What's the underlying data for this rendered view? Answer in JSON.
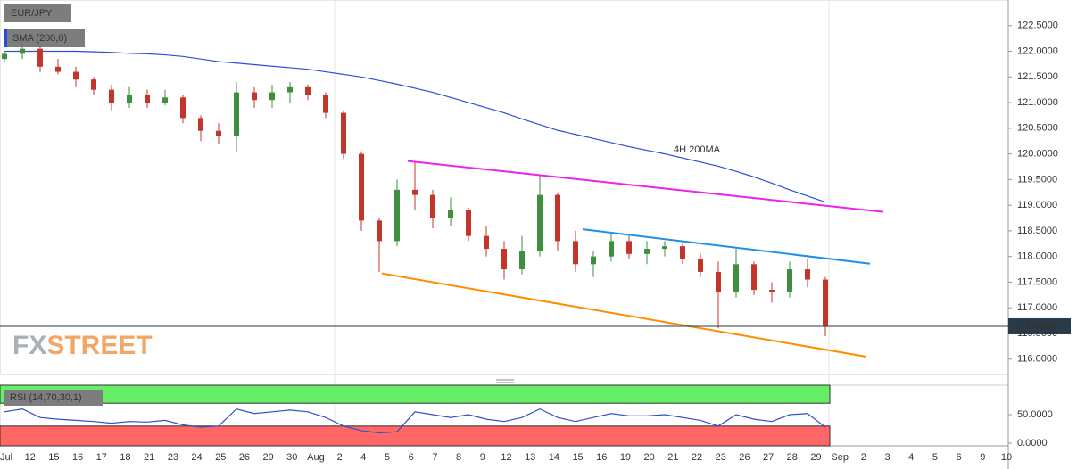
{
  "chart_data": [
    {
      "type": "candlestick",
      "title": "EUR/JPY",
      "watermark": [
        "FX",
        "STREET"
      ],
      "ylim": [
        115.7,
        123.0
      ],
      "xlim": [
        -0.25,
        56.25
      ],
      "yticks": [
        {
          "value": 116.0,
          "label": "116.0000"
        },
        {
          "value": 116.5,
          "label": "116.5000"
        },
        {
          "value": 117.0,
          "label": "117.0000"
        },
        {
          "value": 117.5,
          "label": "117.5000"
        },
        {
          "value": 118.0,
          "label": "118.0000"
        },
        {
          "value": 118.5,
          "label": "118.5000"
        },
        {
          "value": 119.0,
          "label": "119.0000"
        },
        {
          "value": 119.5,
          "label": "119.5000"
        },
        {
          "value": 120.0,
          "label": "120.0000"
        },
        {
          "value": 120.5,
          "label": "120.5000"
        },
        {
          "value": 121.0,
          "label": "121.0000"
        },
        {
          "value": 121.5,
          "label": "121.5000"
        },
        {
          "value": 122.0,
          "label": "122.0000"
        },
        {
          "value": 122.5,
          "label": "122.5000"
        }
      ],
      "up_color": "#3f8f3f",
      "down_color": "#c3352b",
      "open": [
        121.85,
        121.95,
        122.05,
        121.7,
        121.6,
        121.45,
        121.25,
        121.0,
        121.15,
        121.0,
        121.1,
        120.7,
        120.45,
        120.35,
        121.2,
        121.05,
        121.2,
        121.3,
        121.15,
        120.8,
        120.0,
        118.7,
        118.3,
        119.3,
        119.2,
        118.75,
        118.9,
        118.4,
        118.15,
        117.75,
        118.1,
        119.2,
        118.3,
        117.85,
        118.0,
        118.3,
        118.05,
        118.15,
        118.2,
        117.95,
        117.7,
        117.3,
        117.85,
        117.35,
        117.3,
        117.75,
        117.55
      ],
      "high": [
        122.0,
        122.15,
        122.1,
        121.85,
        121.7,
        121.5,
        121.35,
        121.3,
        121.25,
        121.25,
        121.15,
        120.75,
        120.6,
        121.4,
        121.3,
        121.35,
        121.4,
        121.35,
        121.2,
        120.85,
        120.05,
        118.75,
        119.5,
        119.85,
        119.3,
        119.15,
        118.95,
        118.6,
        118.3,
        118.4,
        119.6,
        119.25,
        118.5,
        118.1,
        118.45,
        118.4,
        118.3,
        118.3,
        118.25,
        118.05,
        117.9,
        118.15,
        117.9,
        117.5,
        117.9,
        117.95,
        117.6
      ],
      "low": [
        121.8,
        121.85,
        121.6,
        121.55,
        121.3,
        121.15,
        120.85,
        120.9,
        120.9,
        120.95,
        120.6,
        120.25,
        120.2,
        120.05,
        120.9,
        120.9,
        121.0,
        121.05,
        120.7,
        119.9,
        118.5,
        117.7,
        118.2,
        118.9,
        118.55,
        118.6,
        118.3,
        118.0,
        117.55,
        117.65,
        118.0,
        118.1,
        117.7,
        117.6,
        117.9,
        117.95,
        117.85,
        118.0,
        117.85,
        117.6,
        116.6,
        117.2,
        117.25,
        117.1,
        117.2,
        117.4,
        116.45
      ],
      "close": [
        121.95,
        122.05,
        121.7,
        121.6,
        121.45,
        121.25,
        121.0,
        121.15,
        121.0,
        121.1,
        120.7,
        120.45,
        120.35,
        121.2,
        121.05,
        121.2,
        121.3,
        121.15,
        120.8,
        120.0,
        118.7,
        118.3,
        119.3,
        119.2,
        118.75,
        118.9,
        118.4,
        118.15,
        117.75,
        118.1,
        119.2,
        118.3,
        117.85,
        118.0,
        118.3,
        118.05,
        118.15,
        118.2,
        117.95,
        117.7,
        117.3,
        117.85,
        117.35,
        117.3,
        117.75,
        117.55,
        116.64
      ],
      "series": [
        {
          "name": "SMA (200,0)",
          "color": "#2a4fd6",
          "values": [
            122.0,
            122.0,
            122.0,
            122.0,
            122.0,
            121.99,
            121.98,
            121.96,
            121.95,
            121.93,
            121.9,
            121.85,
            121.8,
            121.77,
            121.74,
            121.71,
            121.68,
            121.65,
            121.6,
            121.55,
            121.5,
            121.43,
            121.36,
            121.28,
            121.2,
            121.1,
            121.0,
            120.9,
            120.8,
            120.68,
            120.57,
            120.46,
            120.38,
            120.3,
            120.22,
            120.14,
            120.07,
            120.0,
            119.92,
            119.84,
            119.76,
            119.66,
            119.55,
            119.43,
            119.3,
            119.18,
            119.06
          ]
        }
      ],
      "trendlines": [
        {
          "color": "#ee22ee",
          "x": [
            22.6,
            49.25
          ],
          "values": [
            119.86,
            118.87
          ]
        },
        {
          "color": "#1e90e6",
          "x": [
            32.4,
            48.5
          ],
          "values": [
            118.53,
            117.86
          ]
        },
        {
          "color": "#ff8c00",
          "x": [
            21.15,
            48.25
          ],
          "values": [
            117.67,
            116.05
          ]
        }
      ],
      "annotation": "4H 200MA",
      "annotation_color": "#1e90e6",
      "last_price": {
        "value": 116.639,
        "label": "116.6390"
      },
      "date_labels": [
        "Jul",
        "12",
        "15",
        "16",
        "17",
        "18",
        "21",
        "23",
        "24",
        "25",
        "26",
        "29",
        "30",
        "Aug",
        "2",
        "4",
        "5",
        "6",
        "7",
        "8",
        "9",
        "12",
        "13",
        "14",
        "15",
        "16",
        "19",
        "20",
        "21",
        "22",
        "23",
        "26",
        "27",
        "28",
        "29",
        "Sep",
        "2",
        "3",
        "4",
        "5",
        "6",
        "9",
        "10"
      ]
    },
    {
      "type": "rsi",
      "title": "RSI (14,70,30,1)",
      "ylim": [
        -4.7,
        101.6
      ],
      "overbought": 70,
      "oversold": 30,
      "yticks": [
        {
          "value": 0,
          "label": "0.0000"
        },
        {
          "value": 50,
          "label": "50.0000"
        }
      ],
      "color": "#3050c8",
      "values": [
        55,
        60,
        45,
        42,
        40,
        38,
        35,
        38,
        37,
        40,
        32,
        28,
        30,
        60,
        52,
        55,
        58,
        55,
        45,
        30,
        22,
        18,
        20,
        55,
        50,
        45,
        50,
        42,
        38,
        45,
        60,
        45,
        38,
        45,
        52,
        48,
        48,
        50,
        45,
        40,
        30,
        50,
        42,
        38,
        50,
        52,
        28
      ]
    }
  ]
}
